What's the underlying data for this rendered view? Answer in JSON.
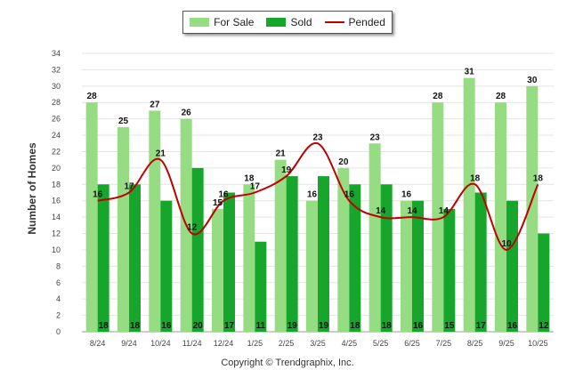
{
  "chart_data": {
    "type": "bar",
    "categories": [
      "8/24",
      "9/24",
      "10/24",
      "11/24",
      "12/24",
      "1/25",
      "2/25",
      "3/25",
      "4/25",
      "5/25",
      "6/25",
      "7/25",
      "8/25",
      "9/25",
      "10/25"
    ],
    "series": [
      {
        "name": "For Sale",
        "kind": "bar",
        "color": "#96dc82",
        "values": [
          28,
          25,
          27,
          26,
          15,
          18,
          21,
          16,
          20,
          23,
          16,
          28,
          31,
          28,
          30
        ]
      },
      {
        "name": "Sold",
        "kind": "bar",
        "color": "#15a62b",
        "values": [
          18,
          18,
          16,
          20,
          17,
          11,
          19,
          19,
          18,
          18,
          16,
          15,
          17,
          16,
          12
        ]
      },
      {
        "name": "Pended",
        "kind": "line",
        "color": "#c00000",
        "values": [
          16,
          17,
          21,
          12,
          16,
          17,
          19,
          23,
          16,
          14,
          14,
          14,
          18,
          10,
          18
        ]
      }
    ],
    "ylabel": "Number of Homes",
    "ylim": [
      0,
      34
    ],
    "ytick_step": 2,
    "grid": true,
    "legend_position": "top-center"
  },
  "credit": "Copyright © Trendgraphix, Inc."
}
